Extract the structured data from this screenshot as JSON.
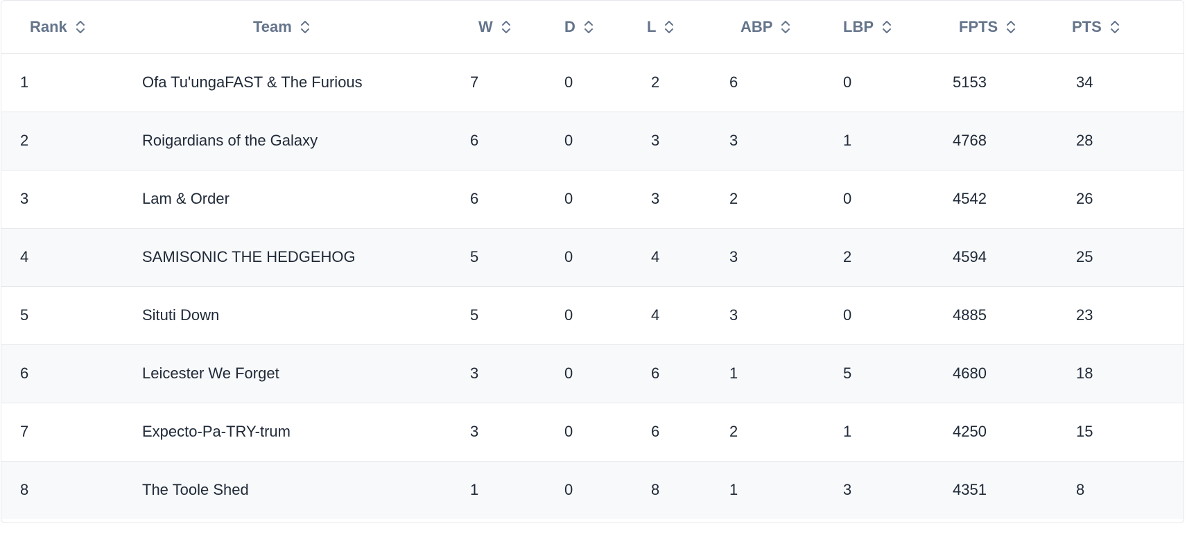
{
  "table": {
    "columns": [
      {
        "key": "rank",
        "label": "Rank",
        "sort_icon": "chevron-up-down-icon"
      },
      {
        "key": "team",
        "label": "Team",
        "sort_icon": "chevron-up-down-icon"
      },
      {
        "key": "w",
        "label": "W",
        "sort_icon": "chevron-up-down-icon"
      },
      {
        "key": "d",
        "label": "D",
        "sort_icon": "chevron-up-down-icon"
      },
      {
        "key": "l",
        "label": "L",
        "sort_icon": "chevron-up-down-icon"
      },
      {
        "key": "abp",
        "label": "ABP",
        "sort_icon": "chevron-up-down-icon"
      },
      {
        "key": "lbp",
        "label": "LBP",
        "sort_icon": "chevron-up-down-icon"
      },
      {
        "key": "fpts",
        "label": "FPTS",
        "sort_icon": "chevron-up-down-icon"
      },
      {
        "key": "pts",
        "label": "PTS",
        "sort_icon": "chevron-up-down-icon"
      }
    ],
    "rows": [
      {
        "rank": "1",
        "team": "Ofa Tu'ungaFAST & The Furious",
        "w": "7",
        "d": "0",
        "l": "2",
        "abp": "6",
        "lbp": "0",
        "fpts": "5153",
        "pts": "34"
      },
      {
        "rank": "2",
        "team": "Roigardians of the Galaxy",
        "w": "6",
        "d": "0",
        "l": "3",
        "abp": "3",
        "lbp": "1",
        "fpts": "4768",
        "pts": "28"
      },
      {
        "rank": "3",
        "team": "Lam & Order",
        "w": "6",
        "d": "0",
        "l": "3",
        "abp": "2",
        "lbp": "0",
        "fpts": "4542",
        "pts": "26"
      },
      {
        "rank": "4",
        "team": "SAMISONIC THE HEDGEHOG",
        "w": "5",
        "d": "0",
        "l": "4",
        "abp": "3",
        "lbp": "2",
        "fpts": "4594",
        "pts": "25"
      },
      {
        "rank": "5",
        "team": "Situti Down",
        "w": "5",
        "d": "0",
        "l": "4",
        "abp": "3",
        "lbp": "0",
        "fpts": "4885",
        "pts": "23"
      },
      {
        "rank": "6",
        "team": "Leicester We Forget",
        "w": "3",
        "d": "0",
        "l": "6",
        "abp": "1",
        "lbp": "5",
        "fpts": "4680",
        "pts": "18"
      },
      {
        "rank": "7",
        "team": "Expecto-Pa-TRY-trum",
        "w": "3",
        "d": "0",
        "l": "6",
        "abp": "2",
        "lbp": "1",
        "fpts": "4250",
        "pts": "15"
      },
      {
        "rank": "8",
        "team": "The Toole Shed",
        "w": "1",
        "d": "0",
        "l": "8",
        "abp": "1",
        "lbp": "3",
        "fpts": "4351",
        "pts": "8"
      }
    ]
  },
  "colors": {
    "header_text": "#64748b",
    "body_text": "#1f2937",
    "border": "#e5e7eb",
    "row_alt_bg": "#f8f9fb"
  }
}
